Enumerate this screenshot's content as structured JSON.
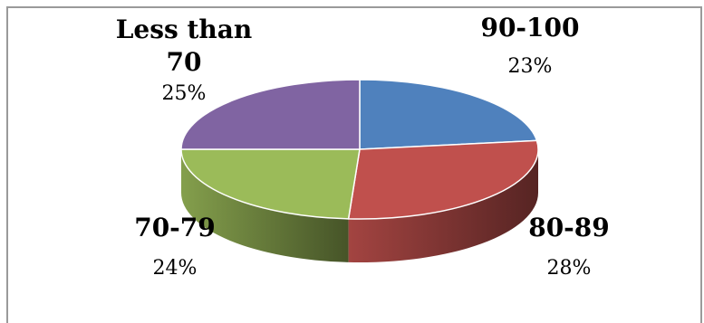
{
  "chart_data": {
    "type": "pie",
    "title": "",
    "slices": [
      {
        "label": "90-100",
        "value": 23,
        "value_label": "23%",
        "color": "#4f81bd"
      },
      {
        "label": "80-89",
        "value": 28,
        "value_label": "28%",
        "color": "#c0504d"
      },
      {
        "label": "70-79",
        "value": 24,
        "value_label": "24%",
        "color": "#9bbb59"
      },
      {
        "label_lines": [
          "Less than",
          "70"
        ],
        "value": 25,
        "value_label": "25%",
        "color": "#8064a2"
      }
    ],
    "legend": "none",
    "style": "3d"
  }
}
